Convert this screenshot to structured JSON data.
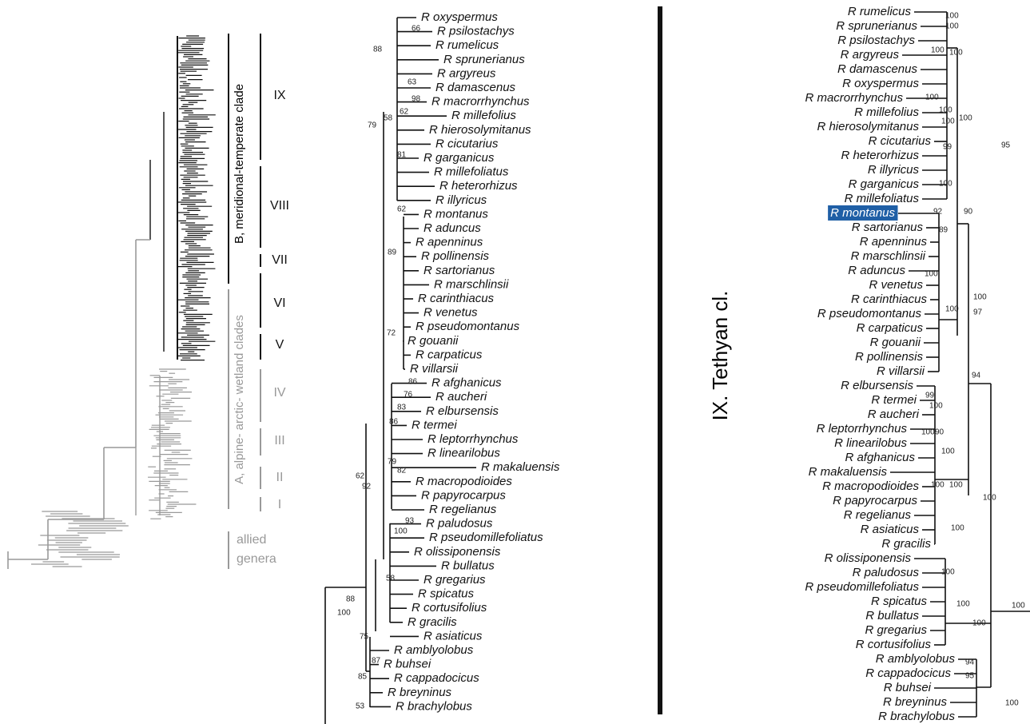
{
  "overview": {
    "group_labels": {
      "B": "B, meridional-temperate clade",
      "A": "A, alpine- arctic- wetland clades",
      "allied": [
        "allied",
        "genera"
      ]
    },
    "clades": [
      "IX",
      "VIII",
      "VII",
      "VI",
      "V",
      "IV",
      "III",
      "II",
      "I"
    ]
  },
  "middle_tree": {
    "taxa": [
      "R oxyspermus",
      "R psilostachys",
      "R rumelicus",
      "R sprunerianus",
      "R argyreus",
      "R damascenus",
      "R macrorrhynchus",
      "R millefolius",
      "R hierosolymitanus",
      "R cicutarius",
      "R garganicus",
      "R millefoliatus",
      "R heterorhizus",
      "R illyricus",
      "R montanus",
      "R aduncus",
      "R apenninus",
      "R pollinensis",
      "R sartorianus",
      "R marschlinsii",
      "R carinthiacus",
      "R venetus",
      "R pseudomontanus",
      "R gouanii",
      "R carpaticus",
      "R villarsii",
      "R afghanicus",
      "R aucheri",
      "R elbursensis",
      "R termei",
      "R leptorrhynchus",
      "R linearilobus",
      "R makaluensis",
      "R macropodioides",
      "R papyrocarpus",
      "R regelianus",
      "R paludosus",
      "R pseudomillefoliatus",
      "R olissiponensis",
      "R bullatus",
      "R gregarius",
      "R spicatus",
      "R cortusifolius",
      "R gracilis",
      "R asiaticus",
      "R amblyolobus",
      "R buhsei",
      "R cappadocicus",
      "R breyninus",
      "R brachylobus"
    ],
    "support": [
      66,
      88,
      63,
      98,
      62,
      58,
      79,
      81,
      62,
      89,
      72,
      86,
      76,
      83,
      86,
      79,
      62,
      82,
      92,
      93,
      100,
      58,
      88,
      100,
      75,
      87,
      85,
      53
    ]
  },
  "right_tree": {
    "title": "IX. Tethyan cl.",
    "highlighted": 14,
    "taxa": [
      "R rumelicus",
      "R sprunerianus",
      "R psilostachys",
      "R argyreus",
      "R damascenus",
      "R oxyspermus",
      "R macrorrhynchus",
      "R millefolius",
      "R hierosolymitanus",
      "R cicutarius",
      "R heterorhizus",
      "R illyricus",
      "R garganicus",
      "R millefoliatus",
      "R montanus",
      "R sartorianus",
      "R apenninus",
      "R marschlinsii",
      "R aduncus",
      "R venetus",
      "R carinthiacus",
      "R pseudomontanus",
      "R carpaticus",
      "R gouanii",
      "R pollinensis",
      "R villarsii",
      "R elbursensis",
      "R termei",
      "R aucheri",
      "R leptorrhynchus",
      "R linearilobus",
      "R afghanicus",
      "R makaluensis",
      "R macropodioides",
      "R papyrocarpus",
      "R regelianus",
      "R asiaticus",
      "R gracilis",
      "R olissiponensis",
      "R paludosus",
      "R pseudomillefoliatus",
      "R spicatus",
      "R bullatus",
      "R gregarius",
      "R cortusifolius",
      "R amblyolobus",
      "R cappadocicus",
      "R buhsei",
      "R breyninus",
      "R brachylobus"
    ],
    "support": [
      100,
      100,
      100,
      100,
      100,
      100,
      100,
      100,
      95,
      99,
      100,
      92,
      89,
      90,
      100,
      100,
      100,
      97,
      94,
      99,
      100,
      100,
      90,
      100,
      100,
      100,
      100,
      100,
      100,
      100,
      100,
      100,
      94,
      95,
      100
    ]
  }
}
